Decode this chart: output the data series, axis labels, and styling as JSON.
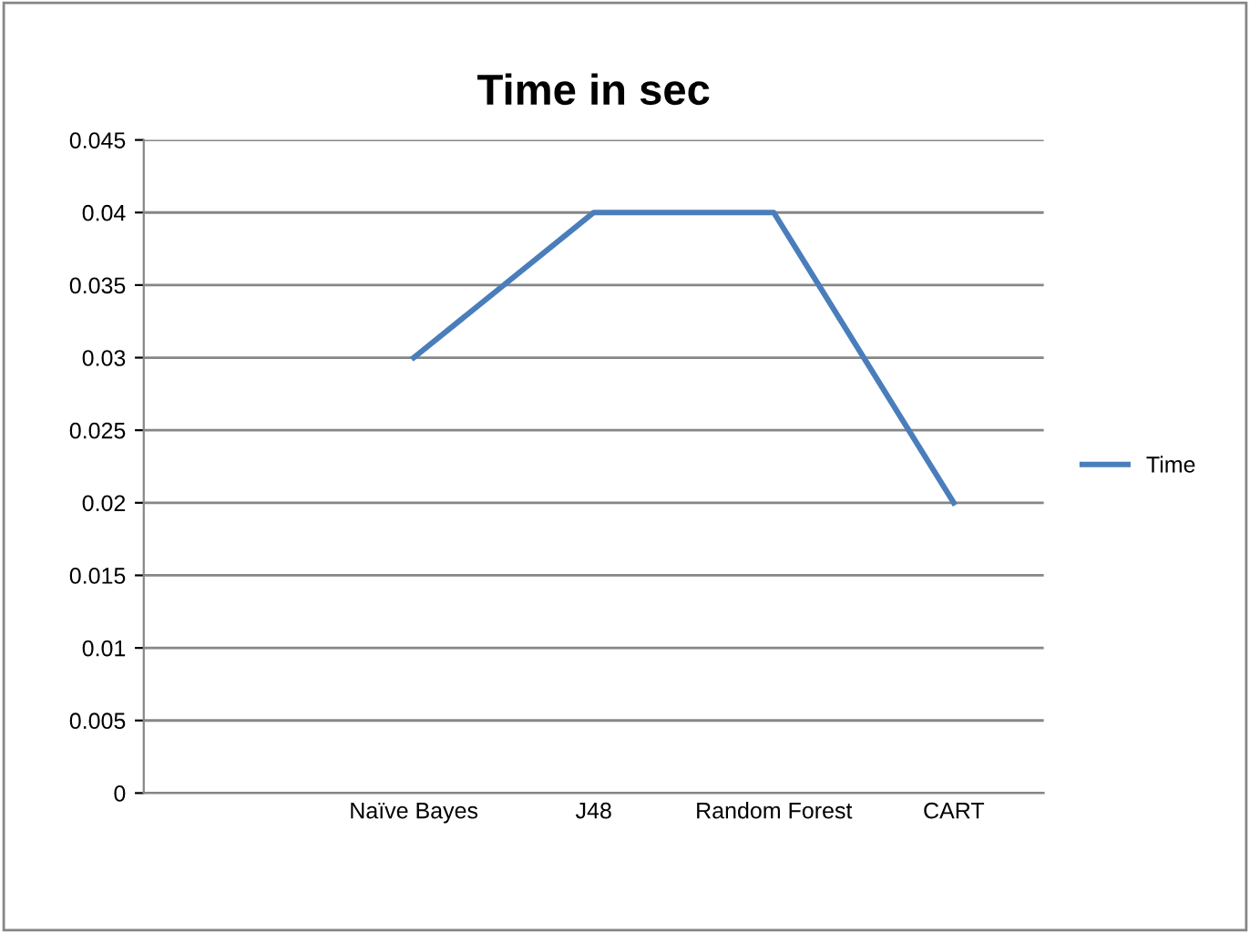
{
  "chart_data": {
    "type": "line",
    "title": "Time in sec",
    "categories": [
      null,
      "Naïve Bayes",
      "J48",
      "Random Forest",
      "CART"
    ],
    "series": [
      {
        "name": "Time",
        "color": "#4a7ebb",
        "values": [
          null,
          0.03,
          0.04,
          0.04,
          0.02
        ]
      }
    ],
    "ylim": [
      0,
      0.045
    ],
    "yticks": [
      0,
      0.005,
      0.01,
      0.015,
      0.02,
      0.025,
      0.03,
      0.035,
      0.04,
      0.045
    ],
    "grid": "y",
    "legend": "right",
    "marker": "none",
    "line_style": "solid"
  }
}
